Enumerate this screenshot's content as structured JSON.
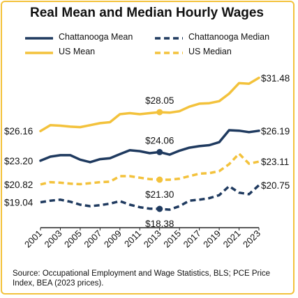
{
  "chart_data": {
    "type": "line",
    "title": "Real Mean and Median Hourly Wages",
    "x": [
      2001,
      2002,
      2003,
      2004,
      2005,
      2006,
      2007,
      2008,
      2009,
      2010,
      2011,
      2012,
      2013,
      2014,
      2015,
      2016,
      2017,
      2018,
      2019,
      2020,
      2021,
      2022,
      2023
    ],
    "x_tick_labels": [
      "2001",
      "2003",
      "2005",
      "2007",
      "2009",
      "2011",
      "2013",
      "2015",
      "2017",
      "2019",
      "2021",
      "2023"
    ],
    "ylim": [
      16.5,
      33
    ],
    "grid": false,
    "legend_position": "top",
    "series": [
      {
        "name": "Chattanooga Mean",
        "color": "#1F3A5F",
        "dash": "solid",
        "values": [
          23.2,
          23.6,
          23.75,
          23.75,
          23.3,
          23.05,
          23.35,
          23.45,
          23.85,
          24.25,
          24.15,
          23.95,
          24.06,
          23.8,
          24.2,
          24.5,
          24.65,
          24.75,
          25.05,
          26.25,
          26.2,
          26.05,
          26.19
        ]
      },
      {
        "name": "Chattanooga Median",
        "color": "#1F3A5F",
        "dash": "dashed",
        "values": [
          19.04,
          19.2,
          19.3,
          19.1,
          18.8,
          18.65,
          18.75,
          18.9,
          19.15,
          18.8,
          18.55,
          18.4,
          18.38,
          18.3,
          18.65,
          19.2,
          19.3,
          19.45,
          19.75,
          20.65,
          20.0,
          19.85,
          20.75
        ]
      },
      {
        "name": "US Mean",
        "color": "#F3C23C",
        "dash": "solid",
        "values": [
          26.16,
          26.75,
          26.7,
          26.6,
          26.55,
          26.75,
          26.95,
          27.05,
          27.85,
          27.95,
          27.85,
          27.95,
          28.05,
          28.0,
          28.15,
          28.6,
          28.9,
          28.95,
          29.15,
          29.9,
          30.95,
          30.9,
          31.48
        ]
      },
      {
        "name": "US Median",
        "color": "#F3C23C",
        "dash": "dashed",
        "values": [
          20.82,
          21.05,
          21.0,
          20.9,
          20.85,
          20.95,
          21.05,
          21.1,
          21.65,
          21.65,
          21.5,
          21.35,
          21.3,
          21.3,
          21.4,
          21.65,
          21.9,
          21.95,
          22.15,
          22.85,
          23.9,
          22.9,
          23.11
        ]
      }
    ],
    "data_labels": [
      {
        "text": "$26.16",
        "series": 2,
        "index": 0,
        "place": "left"
      },
      {
        "text": "$23.20",
        "series": 0,
        "index": 0,
        "place": "left"
      },
      {
        "text": "$20.82",
        "series": 3,
        "index": 0,
        "place": "left"
      },
      {
        "text": "$19.04",
        "series": 1,
        "index": 0,
        "place": "left"
      },
      {
        "text": "$28.05",
        "series": 2,
        "index": 12,
        "place": "above"
      },
      {
        "text": "$24.06",
        "series": 0,
        "index": 12,
        "place": "above"
      },
      {
        "text": "$21.30",
        "series": 3,
        "index": 12,
        "place": "below"
      },
      {
        "text": "$18.38",
        "series": 1,
        "index": 12,
        "place": "below"
      },
      {
        "text": "$31.48",
        "series": 2,
        "index": 22,
        "place": "right"
      },
      {
        "text": "$26.19",
        "series": 0,
        "index": 22,
        "place": "right"
      },
      {
        "text": "$23.11",
        "series": 3,
        "index": 22,
        "place": "right"
      },
      {
        "text": "$20.75",
        "series": 1,
        "index": 22,
        "place": "right"
      }
    ],
    "markers": [
      {
        "series": 2,
        "index": 12
      },
      {
        "series": 0,
        "index": 12
      },
      {
        "series": 3,
        "index": 12
      },
      {
        "series": 1,
        "index": 12
      }
    ]
  },
  "source_note": "Source: Occupational Employment and Wage Statistics, BLS; PCE Price Index, BEA (2023 prices)."
}
